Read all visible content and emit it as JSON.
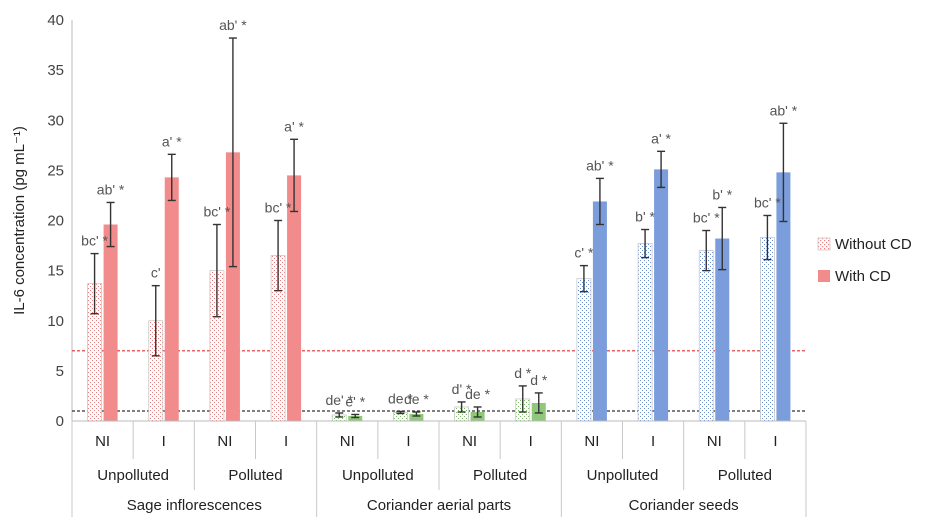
{
  "chart_data": {
    "type": "bar",
    "ylabel": "IL-6 concentration (pg mL⁻¹)",
    "ylim": [
      0,
      40
    ],
    "yticks": [
      0,
      5,
      10,
      15,
      20,
      25,
      30,
      35,
      40
    ],
    "grid": false,
    "legend_position": "right",
    "legend": [
      {
        "name": "Without CD",
        "style": "dotted"
      },
      {
        "name": "With CD",
        "style": "solid"
      }
    ],
    "reference_lines": [
      {
        "y": 7,
        "color": "#e03030"
      },
      {
        "y": 1,
        "color": "#333333"
      }
    ],
    "groups": [
      {
        "label": "Sage inflorescences",
        "color": "#f28b8b",
        "pattern_color": "#e58080",
        "subgroups": [
          {
            "label": "Unpolluted",
            "bars": [
              {
                "label": "NI",
                "without": {
                  "value": 13.7,
                  "err": 3.0,
                  "sig": "bc' *"
                },
                "with": {
                  "value": 19.6,
                  "err": 2.2,
                  "sig": "ab' *"
                }
              },
              {
                "label": "I",
                "without": {
                  "value": 10.0,
                  "err": 3.5,
                  "sig": "c'"
                },
                "with": {
                  "value": 24.3,
                  "err": 2.3,
                  "sig": "a' *"
                }
              }
            ]
          },
          {
            "label": "Polluted",
            "bars": [
              {
                "label": "NI",
                "without": {
                  "value": 15.0,
                  "err": 4.6,
                  "sig": "bc' *"
                },
                "with": {
                  "value": 26.8,
                  "err": 11.4,
                  "sig": "ab' *"
                }
              },
              {
                "label": "I",
                "without": {
                  "value": 16.5,
                  "err": 3.5,
                  "sig": "bc' *"
                },
                "with": {
                  "value": 24.5,
                  "err": 3.6,
                  "sig": "a' *"
                }
              }
            ]
          }
        ]
      },
      {
        "label": "Coriander aerial parts",
        "color": "#8fc87a",
        "pattern_color": "#7db86a",
        "subgroups": [
          {
            "label": "Unpolluted",
            "bars": [
              {
                "label": "NI",
                "without": {
                  "value": 0.6,
                  "err": 0.2,
                  "sig": "de' *"
                },
                "with": {
                  "value": 0.5,
                  "err": 0.15,
                  "sig": "e' *"
                }
              },
              {
                "label": "I",
                "without": {
                  "value": 0.85,
                  "err": 0.1,
                  "sig": "de *"
                },
                "with": {
                  "value": 0.7,
                  "err": 0.2,
                  "sig": "de *"
                }
              }
            ]
          },
          {
            "label": "Polluted",
            "bars": [
              {
                "label": "NI",
                "without": {
                  "value": 1.4,
                  "err": 0.5,
                  "sig": "d' *"
                },
                "with": {
                  "value": 0.9,
                  "err": 0.5,
                  "sig": "de *"
                }
              },
              {
                "label": "I",
                "without": {
                  "value": 2.2,
                  "err": 1.3,
                  "sig": "d *"
                },
                "with": {
                  "value": 1.8,
                  "err": 1.0,
                  "sig": "d *"
                }
              }
            ]
          }
        ]
      },
      {
        "label": "Coriander seeds",
        "color": "#7b9ddb",
        "pattern_color": "#6a8ed0",
        "subgroups": [
          {
            "label": "Unpolluted",
            "bars": [
              {
                "label": "NI",
                "without": {
                  "value": 14.2,
                  "err": 1.3,
                  "sig": "c' *"
                },
                "with": {
                  "value": 21.9,
                  "err": 2.3,
                  "sig": "ab' *"
                }
              },
              {
                "label": "I",
                "without": {
                  "value": 17.7,
                  "err": 1.4,
                  "sig": "b' *"
                },
                "with": {
                  "value": 25.1,
                  "err": 1.8,
                  "sig": "a' *"
                }
              }
            ]
          },
          {
            "label": "Polluted",
            "bars": [
              {
                "label": "NI",
                "without": {
                  "value": 17.0,
                  "err": 2.0,
                  "sig": "bc' *"
                },
                "with": {
                  "value": 18.2,
                  "err": 3.1,
                  "sig": "b' *"
                }
              },
              {
                "label": "I",
                "without": {
                  "value": 18.3,
                  "err": 2.2,
                  "sig": "bc' *"
                },
                "with": {
                  "value": 24.8,
                  "err": 4.9,
                  "sig": "ab' *"
                }
              }
            ]
          }
        ]
      }
    ]
  }
}
